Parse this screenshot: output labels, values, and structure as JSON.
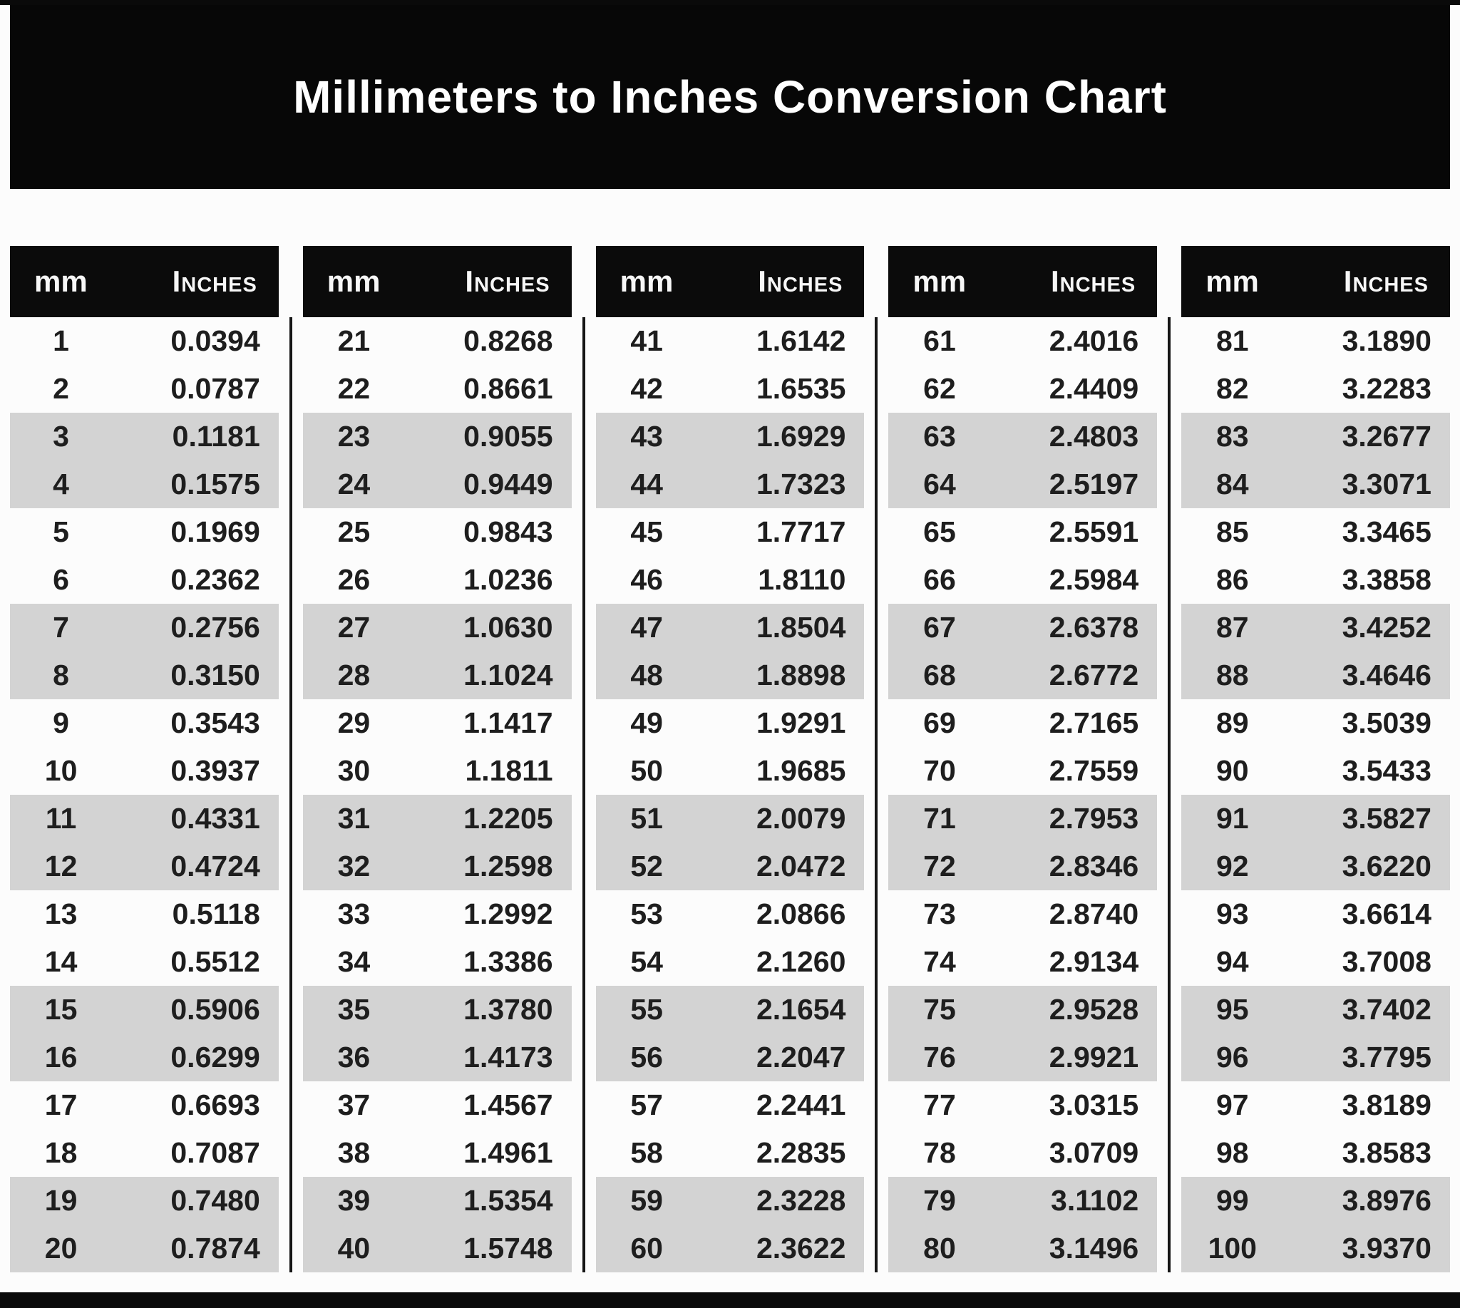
{
  "title": "Millimeters to Inches Conversion Chart",
  "table": {
    "header": {
      "mm_label": "mm",
      "inches_label": "Inches"
    }
  },
  "colors": {
    "band_black": "#0a0a0a",
    "header_black": "#0b0b0b",
    "stripe_gray": "#d3d3d3",
    "divider_black": "#161616",
    "text_dark": "#1e1e1e",
    "title_white": "#ffffff",
    "page_bg": "#fcfcfc"
  },
  "chart_data": {
    "type": "table",
    "title": "Millimeters to Inches Conversion Chart",
    "headers": [
      "mm",
      "Inches"
    ],
    "layout": {
      "column_group_count": 5,
      "rows_per_group": 20,
      "stripe_pattern": "rows shaded gray in alternating pairs: rows 3-4, 7-8, 11-12, 15-16, 19-20 of each group"
    },
    "column_groups": [
      {
        "rows": [
          {
            "mm": 1,
            "inches": "0.0394"
          },
          {
            "mm": 2,
            "inches": "0.0787"
          },
          {
            "mm": 3,
            "inches": "0.1181"
          },
          {
            "mm": 4,
            "inches": "0.1575"
          },
          {
            "mm": 5,
            "inches": "0.1969"
          },
          {
            "mm": 6,
            "inches": "0.2362"
          },
          {
            "mm": 7,
            "inches": "0.2756"
          },
          {
            "mm": 8,
            "inches": "0.3150"
          },
          {
            "mm": 9,
            "inches": "0.3543"
          },
          {
            "mm": 10,
            "inches": "0.3937"
          },
          {
            "mm": 11,
            "inches": "0.4331"
          },
          {
            "mm": 12,
            "inches": "0.4724"
          },
          {
            "mm": 13,
            "inches": "0.5118"
          },
          {
            "mm": 14,
            "inches": "0.5512"
          },
          {
            "mm": 15,
            "inches": "0.5906"
          },
          {
            "mm": 16,
            "inches": "0.6299"
          },
          {
            "mm": 17,
            "inches": "0.6693"
          },
          {
            "mm": 18,
            "inches": "0.7087"
          },
          {
            "mm": 19,
            "inches": "0.7480"
          },
          {
            "mm": 20,
            "inches": "0.7874"
          }
        ]
      },
      {
        "rows": [
          {
            "mm": 21,
            "inches": "0.8268"
          },
          {
            "mm": 22,
            "inches": "0.8661"
          },
          {
            "mm": 23,
            "inches": "0.9055"
          },
          {
            "mm": 24,
            "inches": "0.9449"
          },
          {
            "mm": 25,
            "inches": "0.9843"
          },
          {
            "mm": 26,
            "inches": "1.0236"
          },
          {
            "mm": 27,
            "inches": "1.0630"
          },
          {
            "mm": 28,
            "inches": "1.1024"
          },
          {
            "mm": 29,
            "inches": "1.1417"
          },
          {
            "mm": 30,
            "inches": "1.1811"
          },
          {
            "mm": 31,
            "inches": "1.2205"
          },
          {
            "mm": 32,
            "inches": "1.2598"
          },
          {
            "mm": 33,
            "inches": "1.2992"
          },
          {
            "mm": 34,
            "inches": "1.3386"
          },
          {
            "mm": 35,
            "inches": "1.3780"
          },
          {
            "mm": 36,
            "inches": "1.4173"
          },
          {
            "mm": 37,
            "inches": "1.4567"
          },
          {
            "mm": 38,
            "inches": "1.4961"
          },
          {
            "mm": 39,
            "inches": "1.5354"
          },
          {
            "mm": 40,
            "inches": "1.5748"
          }
        ]
      },
      {
        "rows": [
          {
            "mm": 41,
            "inches": "1.6142"
          },
          {
            "mm": 42,
            "inches": "1.6535"
          },
          {
            "mm": 43,
            "inches": "1.6929"
          },
          {
            "mm": 44,
            "inches": "1.7323"
          },
          {
            "mm": 45,
            "inches": "1.7717"
          },
          {
            "mm": 46,
            "inches": "1.8110"
          },
          {
            "mm": 47,
            "inches": "1.8504"
          },
          {
            "mm": 48,
            "inches": "1.8898"
          },
          {
            "mm": 49,
            "inches": "1.9291"
          },
          {
            "mm": 50,
            "inches": "1.9685"
          },
          {
            "mm": 51,
            "inches": "2.0079"
          },
          {
            "mm": 52,
            "inches": "2.0472"
          },
          {
            "mm": 53,
            "inches": "2.0866"
          },
          {
            "mm": 54,
            "inches": "2.1260"
          },
          {
            "mm": 55,
            "inches": "2.1654"
          },
          {
            "mm": 56,
            "inches": "2.2047"
          },
          {
            "mm": 57,
            "inches": "2.2441"
          },
          {
            "mm": 58,
            "inches": "2.2835"
          },
          {
            "mm": 59,
            "inches": "2.3228"
          },
          {
            "mm": 60,
            "inches": "2.3622"
          }
        ]
      },
      {
        "rows": [
          {
            "mm": 61,
            "inches": "2.4016"
          },
          {
            "mm": 62,
            "inches": "2.4409"
          },
          {
            "mm": 63,
            "inches": "2.4803"
          },
          {
            "mm": 64,
            "inches": "2.5197"
          },
          {
            "mm": 65,
            "inches": "2.5591"
          },
          {
            "mm": 66,
            "inches": "2.5984"
          },
          {
            "mm": 67,
            "inches": "2.6378"
          },
          {
            "mm": 68,
            "inches": "2.6772"
          },
          {
            "mm": 69,
            "inches": "2.7165"
          },
          {
            "mm": 70,
            "inches": "2.7559"
          },
          {
            "mm": 71,
            "inches": "2.7953"
          },
          {
            "mm": 72,
            "inches": "2.8346"
          },
          {
            "mm": 73,
            "inches": "2.8740"
          },
          {
            "mm": 74,
            "inches": "2.9134"
          },
          {
            "mm": 75,
            "inches": "2.9528"
          },
          {
            "mm": 76,
            "inches": "2.9921"
          },
          {
            "mm": 77,
            "inches": "3.0315"
          },
          {
            "mm": 78,
            "inches": "3.0709"
          },
          {
            "mm": 79,
            "inches": "3.1102"
          },
          {
            "mm": 80,
            "inches": "3.1496"
          }
        ]
      },
      {
        "rows": [
          {
            "mm": 81,
            "inches": "3.1890"
          },
          {
            "mm": 82,
            "inches": "3.2283"
          },
          {
            "mm": 83,
            "inches": "3.2677"
          },
          {
            "mm": 84,
            "inches": "3.3071"
          },
          {
            "mm": 85,
            "inches": "3.3465"
          },
          {
            "mm": 86,
            "inches": "3.3858"
          },
          {
            "mm": 87,
            "inches": "3.4252"
          },
          {
            "mm": 88,
            "inches": "3.4646"
          },
          {
            "mm": 89,
            "inches": "3.5039"
          },
          {
            "mm": 90,
            "inches": "3.5433"
          },
          {
            "mm": 91,
            "inches": "3.5827"
          },
          {
            "mm": 92,
            "inches": "3.6220"
          },
          {
            "mm": 93,
            "inches": "3.6614"
          },
          {
            "mm": 94,
            "inches": "3.7008"
          },
          {
            "mm": 95,
            "inches": "3.7402"
          },
          {
            "mm": 96,
            "inches": "3.7795"
          },
          {
            "mm": 97,
            "inches": "3.8189"
          },
          {
            "mm": 98,
            "inches": "3.8583"
          },
          {
            "mm": 99,
            "inches": "3.8976"
          },
          {
            "mm": 100,
            "inches": "3.9370"
          }
        ]
      }
    ]
  }
}
